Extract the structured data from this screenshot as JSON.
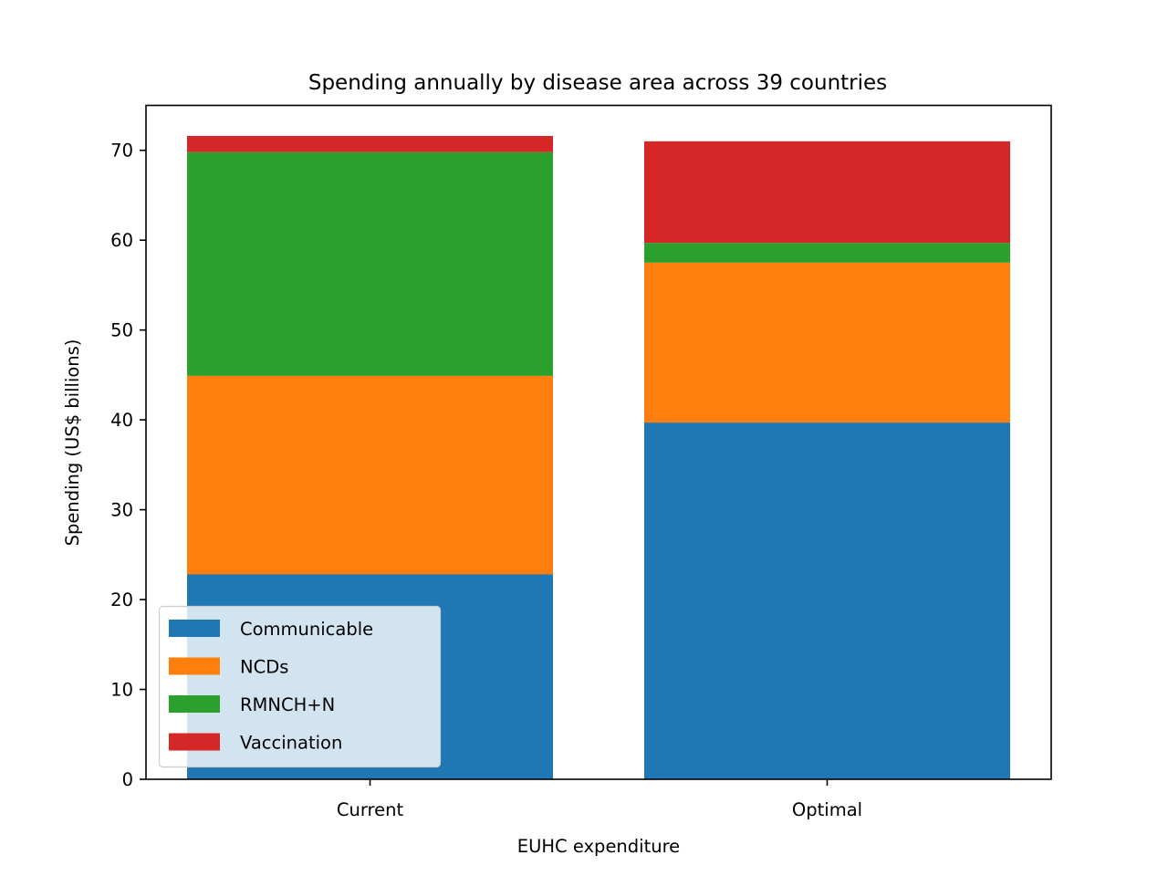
{
  "chart_data": {
    "type": "bar",
    "stacked": true,
    "title": "Spending annually by disease area across 39 countries",
    "xlabel": "EUHC expenditure",
    "ylabel": "Spending (US$ billions)",
    "categories": [
      "Current",
      "Optimal"
    ],
    "ylim": [
      0,
      75
    ],
    "yticks": [
      0,
      10,
      20,
      30,
      40,
      50,
      60,
      70
    ],
    "ytick_labels": [
      "0",
      "10",
      "20",
      "30",
      "40",
      "50",
      "60",
      "70"
    ],
    "grid": false,
    "legend_position": "lower-left",
    "series": [
      {
        "name": "Communicable",
        "color": "#1f77b4",
        "values": [
          22.8,
          39.7
        ]
      },
      {
        "name": "NCDs",
        "color": "#ff7f0e",
        "values": [
          22.1,
          17.8
        ]
      },
      {
        "name": "RMNCH+N",
        "color": "#2ca02c",
        "values": [
          24.9,
          2.2
        ]
      },
      {
        "name": "Vaccination",
        "color": "#d62728",
        "values": [
          1.8,
          11.3
        ]
      }
    ]
  }
}
